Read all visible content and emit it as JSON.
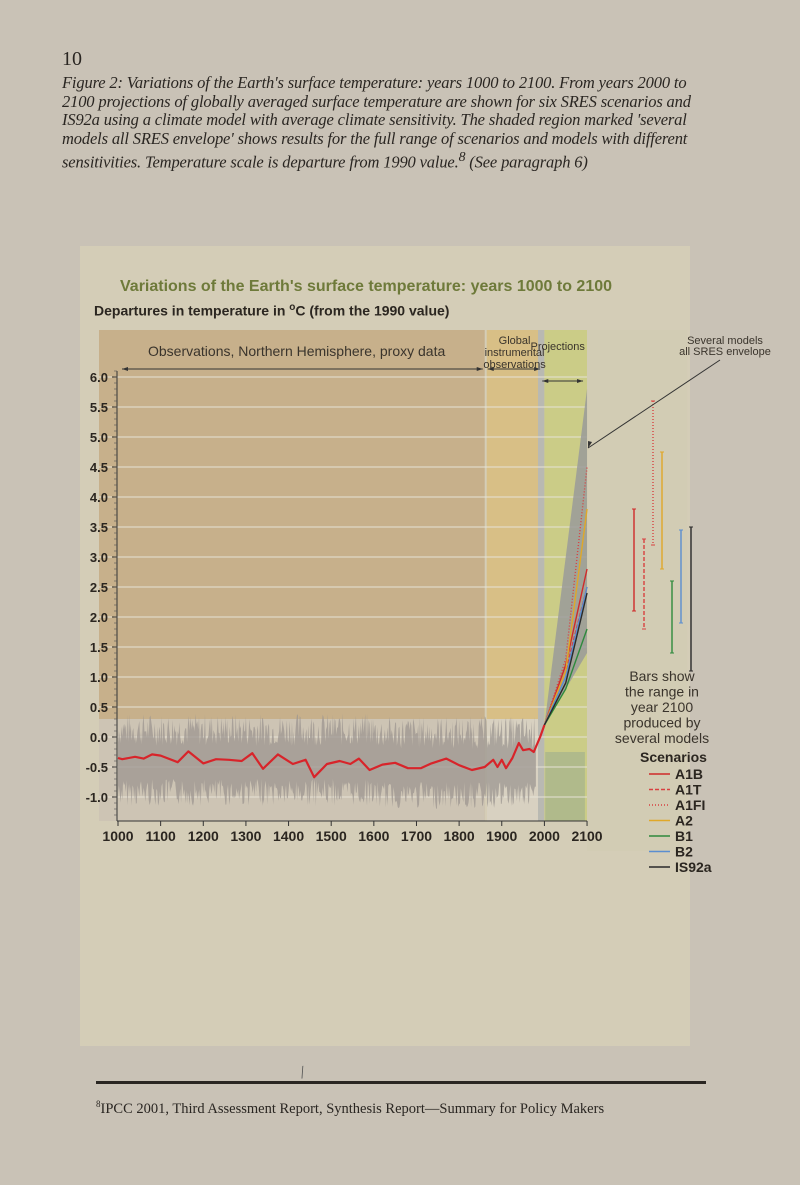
{
  "page": {
    "number": "10",
    "caption": "Figure 2: Variations of the Earth's surface temperature: years 1000 to 2100. From years 2000 to 2100 projections of globally averaged surface temperature are shown for six SRES scenarios and IS92a using a climate model with average climate sensitivity. The shaded region marked 'several models all SRES envelope' shows results for the full range of scenarios and models with different sensitivities. Temperature scale is departure from 1990 value.",
    "caption_footnote_ref": "8",
    "caption_tail": " (See paragraph 6)",
    "footnote_marker": "8",
    "footnote": "IPCC 2001, Third Assessment Report, Synthesis Report—Summary for Policy Makers"
  },
  "figure": {
    "title": "Variations of the Earth's surface temperature: years 1000 to 2100",
    "subtitle_pre": "Departures in temperature in ",
    "subtitle_deg": "o",
    "subtitle_post": "C (from the 1990 value)",
    "region_labels": {
      "proxy": "Observations, Northern Hemisphere, proxy data",
      "instrumental_1": "Global",
      "instrumental_2": "instrumental",
      "instrumental_3": "observations",
      "projections": "Projections",
      "envelope_1": "Several models",
      "envelope_2": "all SRES envelope"
    },
    "bars_note": [
      "Bars show",
      "the range in",
      "year 2100",
      "produced by",
      "several models"
    ],
    "legend_title": "Scenarios"
  },
  "chart_data": {
    "type": "line",
    "title": "Variations of the Earth's surface temperature: years 1000 to 2100",
    "ylabel": "Departures in temperature in °C (from the 1990 value)",
    "xlabel": "",
    "xlim": [
      1000,
      2100
    ],
    "ylim": [
      -1.4,
      6.2
    ],
    "x_ticks": [
      "1000",
      "1100",
      "1200",
      "1300",
      "1400",
      "1500",
      "1600",
      "1700",
      "1800",
      "1900",
      "2000",
      "2100"
    ],
    "y_ticks": [
      "6.0",
      "5.5",
      "5.0",
      "4.5",
      "4.0",
      "3.5",
      "3.0",
      "2.5",
      "2.0",
      "1.5",
      "1.0",
      "0.5",
      "0.0",
      "-0.5",
      "-1.0"
    ],
    "grid": true,
    "regions": [
      {
        "label": "Observations, Northern Hemisphere, proxy data",
        "from": 1000,
        "to": 1860,
        "color": "#c4ad86"
      },
      {
        "label": "Global instrumental observations",
        "from": 1860,
        "to": 2000,
        "color": "#d9bc7c"
      },
      {
        "label": "Projections",
        "from": 2000,
        "to": 2100,
        "color": "#c9cc80"
      }
    ],
    "observed_smoothed": {
      "name": "Northern Hemisphere (smoothed)",
      "color": "#d8242a",
      "x": [
        1000,
        1010,
        1040,
        1060,
        1080,
        1100,
        1140,
        1165,
        1200,
        1230,
        1260,
        1290,
        1315,
        1340,
        1375,
        1410,
        1440,
        1460,
        1490,
        1520,
        1545,
        1565,
        1590,
        1620,
        1650,
        1680,
        1710,
        1735,
        1770,
        1800,
        1830,
        1860,
        1880,
        1890,
        1900,
        1910,
        1925,
        1940,
        1950,
        1965,
        1975,
        1990,
        2000
      ],
      "y": [
        -0.35,
        -0.37,
        -0.33,
        -0.36,
        -0.29,
        -0.31,
        -0.42,
        -0.24,
        -0.44,
        -0.37,
        -0.38,
        -0.4,
        -0.27,
        -0.53,
        -0.29,
        -0.45,
        -0.38,
        -0.67,
        -0.45,
        -0.4,
        -0.45,
        -0.36,
        -0.55,
        -0.46,
        -0.43,
        -0.52,
        -0.52,
        -0.44,
        -0.36,
        -0.47,
        -0.55,
        -0.5,
        -0.38,
        -0.5,
        -0.38,
        -0.52,
        -0.35,
        -0.1,
        -0.22,
        -0.2,
        -0.25,
        0.0,
        0.2
      ]
    },
    "observed_annual_range": {
      "name": "Annual proxy data (grey band)",
      "approx_min": -1.1,
      "approx_max": 0.3
    },
    "series": [
      {
        "name": "A1B",
        "style": "solid",
        "color": "#d02a2a",
        "x": [
          2000,
          2050,
          2100
        ],
        "y": [
          0.2,
          1.2,
          2.8
        ],
        "range_2100": [
          2.1,
          3.8
        ]
      },
      {
        "name": "A1T",
        "style": "dashed",
        "color": "#d84040",
        "x": [
          2000,
          2050,
          2100
        ],
        "y": [
          0.2,
          1.1,
          2.5
        ],
        "range_2100": [
          1.8,
          3.3
        ]
      },
      {
        "name": "A1FI",
        "style": "dotted",
        "color": "#d84040",
        "x": [
          2000,
          2050,
          2100
        ],
        "y": [
          0.2,
          1.3,
          4.5
        ],
        "range_2100": [
          3.2,
          5.6
        ]
      },
      {
        "name": "A2",
        "style": "solid",
        "color": "#e0a828",
        "x": [
          2000,
          2050,
          2100
        ],
        "y": [
          0.2,
          1.1,
          3.8
        ],
        "range_2100": [
          2.8,
          4.75
        ]
      },
      {
        "name": "B1",
        "style": "solid",
        "color": "#2e8a3c",
        "x": [
          2000,
          2050,
          2100
        ],
        "y": [
          0.2,
          0.8,
          1.8
        ],
        "range_2100": [
          1.4,
          2.6
        ]
      },
      {
        "name": "B2",
        "style": "solid",
        "color": "#5b8ed0",
        "x": [
          2000,
          2050,
          2100
        ],
        "y": [
          0.2,
          1.0,
          2.5
        ],
        "range_2100": [
          1.9,
          3.45
        ]
      },
      {
        "name": "IS92a",
        "style": "solid",
        "color": "#2a2a2a",
        "x": [
          2000,
          2050,
          2100
        ],
        "y": [
          0.2,
          0.9,
          2.4
        ],
        "range_2100": [
          1.1,
          3.5
        ]
      }
    ],
    "envelope": {
      "name": "Several models all SRES envelope",
      "color": "#9a9a9a",
      "x": [
        2000,
        2100
      ],
      "upper": [
        0.2,
        5.8
      ],
      "lower": [
        0.2,
        1.4
      ]
    },
    "legend": {
      "title": "Scenarios",
      "entries": [
        "A1B",
        "A1T",
        "A1FI",
        "A2",
        "B1",
        "B2",
        "IS92a"
      ],
      "position": "right"
    }
  }
}
